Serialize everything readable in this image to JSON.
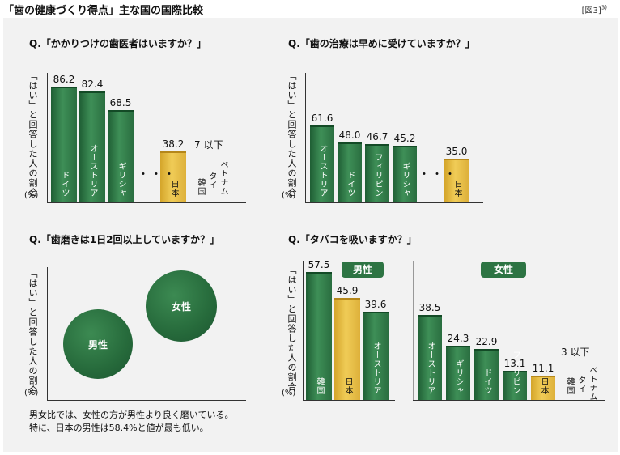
{
  "header": {
    "title": "「歯の健康づくり得点」主な国の国際比較",
    "figure_label": "[図3]",
    "figure_ref": "3)"
  },
  "common": {
    "ylabel": "「はい」と回答した人の割合",
    "unit": "(%)",
    "ellipsis": "・・・"
  },
  "chart_data": [
    {
      "type": "bar",
      "title": "Q.「かかりつけの歯医者はいますか？」",
      "ylabel": "「はい」と回答した人の割合",
      "unit": "(%)",
      "categories": [
        "ドイツ",
        "オーストリア",
        "ギリシャ",
        "日本"
      ],
      "values": [
        86.2,
        82.4,
        68.5,
        38.2
      ],
      "value_labels": [
        "86.2",
        "82.4",
        "68.5",
        "38.2"
      ],
      "highlight": "日本",
      "note_value": "7 以下",
      "note_countries": [
        "ベトナム",
        "タイ",
        "韓国"
      ],
      "colors": {
        "bar": "#2d7443",
        "highlight": "#e8c04a"
      }
    },
    {
      "type": "bar",
      "title": "Q.「歯の治療は早めに受けていますか？」",
      "ylabel": "「はい」と回答した人の割合",
      "unit": "(%)",
      "categories": [
        "オーストリア",
        "ドイツ",
        "フィリピン",
        "ギリシャ",
        "日本"
      ],
      "values": [
        61.6,
        48.0,
        46.7,
        45.2,
        35.0
      ],
      "value_labels": [
        "61.6",
        "48.0",
        "46.7",
        "45.2",
        "35.0"
      ],
      "highlight": "日本",
      "colors": {
        "bar": "#2d7443",
        "highlight": "#e8c04a"
      }
    },
    {
      "type": "bubble",
      "title": "Q.「歯磨きは1日2回以上していますか？」",
      "ylabel": "「はい」と回答した人の割合",
      "unit": "(%)",
      "points": [
        {
          "label": "男性",
          "rank": "lower"
        },
        {
          "label": "女性",
          "rank": "higher"
        }
      ],
      "caption_lines": [
        "男女比では、女性の方が男性より良く磨いている。",
        "特に、日本の男性は58.4%と値が最も低い。"
      ]
    },
    {
      "type": "bar",
      "title": "Q.「タバコを吸いますか？」",
      "ylabel": "「はい」と回答した人の割合",
      "unit": "(%)",
      "series": [
        {
          "name": "男性",
          "categories": [
            "韓国",
            "日本",
            "オーストリア"
          ],
          "values": [
            57.5,
            45.9,
            39.6
          ],
          "value_labels": [
            "57.5",
            "45.9",
            "39.6"
          ]
        },
        {
          "name": "女性",
          "categories": [
            "オーストリア",
            "ギリシャ",
            "ドイツ",
            "フィリピン",
            "日本"
          ],
          "values": [
            38.5,
            24.3,
            22.9,
            13.1,
            11.1
          ],
          "value_labels": [
            "38.5",
            "24.3",
            "22.9",
            "13.1",
            "11.1"
          ],
          "note_value": "3 以下",
          "note_countries": [
            "ベトナム",
            "タイ",
            "韓国"
          ]
        }
      ],
      "highlight": "日本",
      "colors": {
        "bar": "#2d7443",
        "highlight": "#e8c04a"
      }
    }
  ]
}
